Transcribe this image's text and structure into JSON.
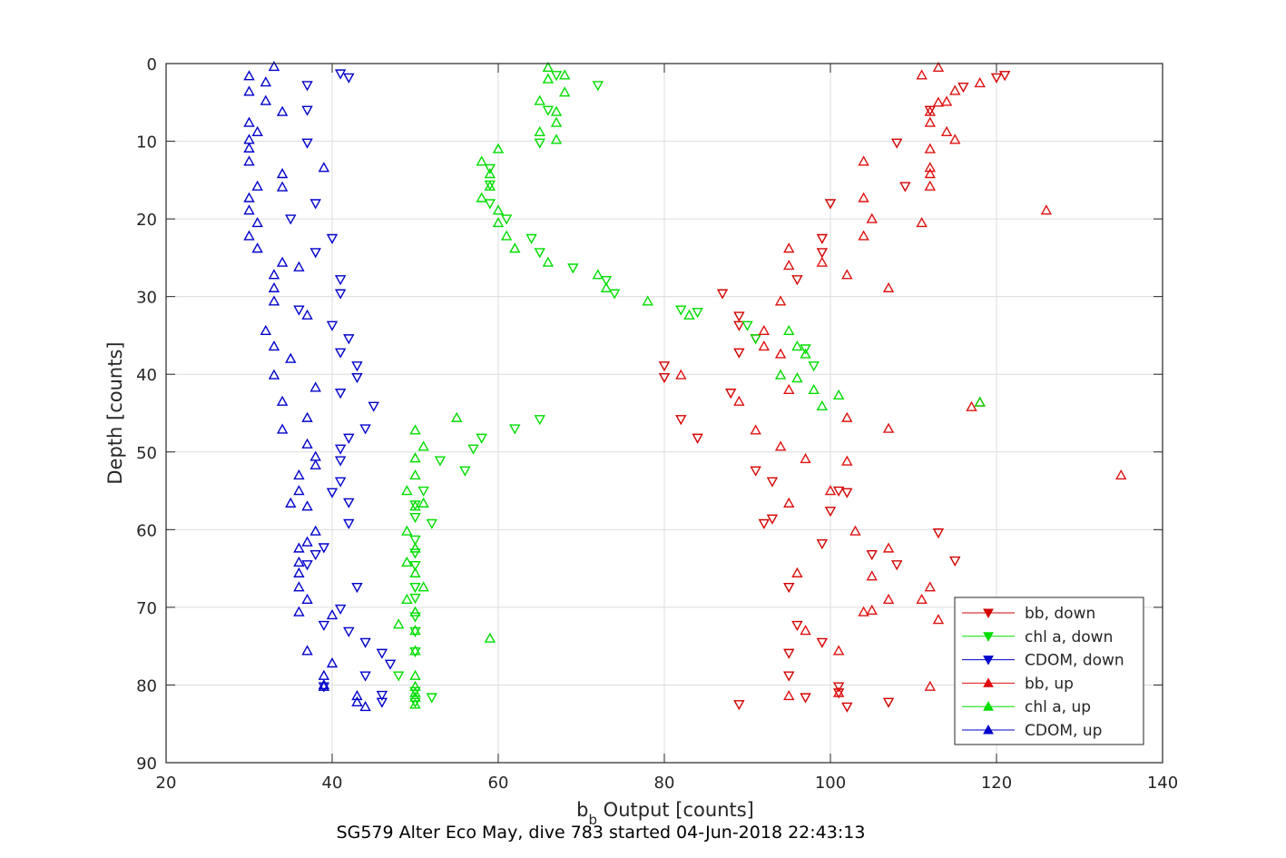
{
  "chart_data": {
    "type": "scatter",
    "xlabel_main": "b",
    "xlabel_sub": "b",
    "xlabel_rest": " Output [counts]",
    "ylabel": "Depth [counts]",
    "caption": "SG579 Alter Eco May, dive 783 started 04-Jun-2018 22:43:13",
    "xlim": [
      20,
      140
    ],
    "ylim": [
      0,
      90
    ],
    "y_reversed": true,
    "grid": true,
    "legend_position": "bottom-right",
    "x_ticks": [
      20,
      40,
      60,
      80,
      100,
      120,
      140
    ],
    "y_ticks": [
      0,
      10,
      20,
      30,
      40,
      50,
      60,
      70,
      80,
      90
    ],
    "series": [
      {
        "name": "bb, down",
        "color": "#d40000",
        "marker": "triangle-down",
        "points": [
          [
            121,
            1.5
          ],
          [
            120,
            1.8
          ],
          [
            116,
            3
          ],
          [
            112,
            6
          ],
          [
            108,
            10.2
          ],
          [
            109,
            15.8
          ],
          [
            100,
            18
          ],
          [
            99,
            22.5
          ],
          [
            99,
            24.3
          ],
          [
            96,
            27.8
          ],
          [
            87,
            29.6
          ],
          [
            89,
            32.5
          ],
          [
            89,
            33.7
          ],
          [
            91,
            35.4
          ],
          [
            89,
            37.2
          ],
          [
            80,
            38.9
          ],
          [
            80,
            40.4
          ],
          [
            88,
            42.4
          ],
          [
            82,
            45.8
          ],
          [
            84,
            48.2
          ],
          [
            91,
            52.4
          ],
          [
            93,
            53.8
          ],
          [
            101,
            55
          ],
          [
            102,
            55.2
          ],
          [
            100,
            57.6
          ],
          [
            92,
            59.2
          ],
          [
            93,
            58.6
          ],
          [
            99,
            61.8
          ],
          [
            113,
            60.4
          ],
          [
            108,
            64.5
          ],
          [
            115,
            64
          ],
          [
            105,
            63.2
          ],
          [
            95,
            67.4
          ],
          [
            96,
            72.3
          ],
          [
            99,
            74.5
          ],
          [
            95,
            75.9
          ],
          [
            95,
            78.8
          ],
          [
            101,
            80.2
          ],
          [
            101,
            81
          ],
          [
            97,
            81.6
          ],
          [
            107,
            82.2
          ],
          [
            102,
            82.8
          ],
          [
            89,
            82.5
          ]
        ]
      },
      {
        "name": "chl a, down",
        "color": "#00dd00",
        "marker": "triangle-down",
        "points": [
          [
            67,
            1.5
          ],
          [
            72,
            2.8
          ],
          [
            66,
            6
          ],
          [
            65,
            10.2
          ],
          [
            59,
            13.5
          ],
          [
            59,
            15.6
          ],
          [
            59,
            18
          ],
          [
            61,
            20
          ],
          [
            64,
            22.5
          ],
          [
            65,
            24.3
          ],
          [
            69,
            26.3
          ],
          [
            73,
            27.9
          ],
          [
            74,
            29.6
          ],
          [
            82,
            31.7
          ],
          [
            84,
            32
          ],
          [
            90,
            33.7
          ],
          [
            91,
            35.4
          ],
          [
            97,
            36.7
          ],
          [
            98,
            38.9
          ],
          [
            62,
            47
          ],
          [
            65,
            45.8
          ],
          [
            58,
            48.2
          ],
          [
            57,
            49.6
          ],
          [
            56,
            52.4
          ],
          [
            53,
            51.1
          ],
          [
            51,
            55
          ],
          [
            50,
            56.8
          ],
          [
            50,
            58.4
          ],
          [
            52,
            59.2
          ],
          [
            50,
            61.3
          ],
          [
            50,
            63
          ],
          [
            50,
            64.6
          ],
          [
            50,
            67.4
          ],
          [
            50,
            68.8
          ],
          [
            50,
            71.2
          ],
          [
            50,
            73.1
          ],
          [
            50,
            75.7
          ],
          [
            48,
            78.8
          ],
          [
            50,
            80.8
          ],
          [
            52,
            81.6
          ],
          [
            50,
            82.2
          ]
        ]
      },
      {
        "name": "CDOM, down",
        "color": "#0000cc",
        "marker": "triangle-down",
        "points": [
          [
            42,
            1.8
          ],
          [
            41,
            1.3
          ],
          [
            37,
            2.8
          ],
          [
            37,
            6
          ],
          [
            37,
            10.2
          ],
          [
            38,
            18
          ],
          [
            35,
            20
          ],
          [
            40,
            22.5
          ],
          [
            38,
            24.3
          ],
          [
            41,
            27.8
          ],
          [
            41,
            29.6
          ],
          [
            36,
            31.7
          ],
          [
            40,
            33.7
          ],
          [
            42,
            35.4
          ],
          [
            41,
            37.2
          ],
          [
            43,
            38.9
          ],
          [
            43,
            40.4
          ],
          [
            41,
            42.4
          ],
          [
            45,
            44.1
          ],
          [
            44,
            47
          ],
          [
            42,
            48.2
          ],
          [
            41,
            49.6
          ],
          [
            41,
            51.1
          ],
          [
            41,
            53.8
          ],
          [
            40,
            55.2
          ],
          [
            42,
            56.5
          ],
          [
            42,
            59.2
          ],
          [
            39,
            62.3
          ],
          [
            38,
            63.2
          ],
          [
            37,
            64.5
          ],
          [
            43,
            67.4
          ],
          [
            41,
            70.2
          ],
          [
            39,
            72.3
          ],
          [
            42,
            73.1
          ],
          [
            44,
            74.5
          ],
          [
            46,
            75.9
          ],
          [
            47,
            77.3
          ],
          [
            44,
            78.8
          ],
          [
            39,
            80.2
          ],
          [
            46,
            81.3
          ],
          [
            46,
            82.2
          ]
        ]
      },
      {
        "name": "bb, up",
        "color": "#e01010",
        "marker": "triangle-up",
        "points": [
          [
            113,
            0.5
          ],
          [
            111,
            1.5
          ],
          [
            118,
            2.5
          ],
          [
            115,
            3.5
          ],
          [
            114,
            4.9
          ],
          [
            113,
            5
          ],
          [
            112,
            6.2
          ],
          [
            112,
            7.6
          ],
          [
            114,
            8.8
          ],
          [
            115,
            9.8
          ],
          [
            112,
            11
          ],
          [
            104,
            12.6
          ],
          [
            112,
            13.4
          ],
          [
            112,
            14.2
          ],
          [
            112,
            15.8
          ],
          [
            104,
            17.3
          ],
          [
            126,
            18.9
          ],
          [
            105,
            20
          ],
          [
            111,
            20.5
          ],
          [
            104,
            22.2
          ],
          [
            95,
            23.8
          ],
          [
            95,
            26
          ],
          [
            99,
            25.6
          ],
          [
            102,
            27.2
          ],
          [
            107,
            28.9
          ],
          [
            94,
            30.6
          ],
          [
            92,
            34.4
          ],
          [
            92,
            36.4
          ],
          [
            94,
            37.4
          ],
          [
            82,
            40.1
          ],
          [
            95,
            42
          ],
          [
            89,
            43.5
          ],
          [
            118,
            43.6
          ],
          [
            117,
            44.2
          ],
          [
            102,
            45.6
          ],
          [
            107,
            47
          ],
          [
            91,
            47.2
          ],
          [
            94,
            49.3
          ],
          [
            97,
            50.9
          ],
          [
            102,
            51.2
          ],
          [
            135,
            53
          ],
          [
            100,
            55
          ],
          [
            95,
            56.6
          ],
          [
            103,
            60.2
          ],
          [
            107,
            62.4
          ],
          [
            96,
            65.6
          ],
          [
            105,
            66
          ],
          [
            107,
            69
          ],
          [
            111,
            69
          ],
          [
            112,
            67.4
          ],
          [
            105,
            70.4
          ],
          [
            104,
            70.6
          ],
          [
            113,
            71.6
          ],
          [
            97,
            73
          ],
          [
            101,
            75.6
          ],
          [
            112,
            80.2
          ],
          [
            101,
            81
          ],
          [
            95,
            81.4
          ]
        ]
      },
      {
        "name": "chl a, up",
        "color": "#00dd00",
        "marker": "triangle-up",
        "points": [
          [
            66,
            0.5
          ],
          [
            68,
            1.5
          ],
          [
            66,
            2
          ],
          [
            68,
            3.7
          ],
          [
            65,
            4.8
          ],
          [
            67,
            6.2
          ],
          [
            67,
            7.6
          ],
          [
            65,
            8.8
          ],
          [
            67,
            9.8
          ],
          [
            60,
            11
          ],
          [
            58,
            12.6
          ],
          [
            59,
            14.2
          ],
          [
            59,
            15.8
          ],
          [
            58,
            17.3
          ],
          [
            60,
            18.9
          ],
          [
            60,
            20.5
          ],
          [
            61,
            22.2
          ],
          [
            62,
            23.8
          ],
          [
            66,
            25.6
          ],
          [
            72,
            27.2
          ],
          [
            73,
            28.9
          ],
          [
            78,
            30.6
          ],
          [
            83,
            32.4
          ],
          [
            95,
            34.4
          ],
          [
            96,
            36.4
          ],
          [
            97,
            37.4
          ],
          [
            94,
            40.1
          ],
          [
            96,
            40.5
          ],
          [
            98,
            42
          ],
          [
            101,
            42.7
          ],
          [
            99,
            44.1
          ],
          [
            118,
            43.6
          ],
          [
            55,
            45.6
          ],
          [
            50,
            47.2
          ],
          [
            51,
            49.3
          ],
          [
            50,
            50.8
          ],
          [
            50,
            53
          ],
          [
            49,
            55
          ],
          [
            51,
            56.6
          ],
          [
            50,
            57
          ],
          [
            49,
            60.2
          ],
          [
            50,
            62.4
          ],
          [
            49,
            64.2
          ],
          [
            50,
            65.6
          ],
          [
            51,
            67.4
          ],
          [
            49,
            69
          ],
          [
            50,
            70.6
          ],
          [
            48,
            72.2
          ],
          [
            50,
            73
          ],
          [
            59,
            74
          ],
          [
            50,
            75.6
          ],
          [
            50,
            78.8
          ],
          [
            50,
            80.2
          ],
          [
            50,
            81
          ],
          [
            50,
            81.6
          ],
          [
            50,
            82.5
          ]
        ]
      },
      {
        "name": "CDOM, up",
        "color": "#0000cc",
        "marker": "triangle-up",
        "points": [
          [
            33,
            0.4
          ],
          [
            30,
            1.6
          ],
          [
            32,
            2.4
          ],
          [
            30,
            3.6
          ],
          [
            32,
            4.8
          ],
          [
            34,
            6.2
          ],
          [
            30,
            7.6
          ],
          [
            31,
            8.8
          ],
          [
            30,
            9.8
          ],
          [
            30,
            10.9
          ],
          [
            30,
            12.6
          ],
          [
            39,
            13.4
          ],
          [
            34,
            14.2
          ],
          [
            31,
            15.8
          ],
          [
            34,
            15.9
          ],
          [
            30,
            17.3
          ],
          [
            30,
            18.9
          ],
          [
            31,
            20.5
          ],
          [
            30,
            22.2
          ],
          [
            31,
            23.8
          ],
          [
            34,
            25.6
          ],
          [
            36,
            26.2
          ],
          [
            33,
            27.2
          ],
          [
            33,
            28.9
          ],
          [
            33,
            30.6
          ],
          [
            37,
            32.4
          ],
          [
            32,
            34.4
          ],
          [
            33,
            36.4
          ],
          [
            35,
            38
          ],
          [
            33,
            40.1
          ],
          [
            38,
            41.7
          ],
          [
            34,
            43.5
          ],
          [
            37,
            45.6
          ],
          [
            34,
            47.1
          ],
          [
            37,
            49
          ],
          [
            38,
            50.6
          ],
          [
            38,
            51.7
          ],
          [
            36,
            53
          ],
          [
            36,
            55
          ],
          [
            35,
            56.6
          ],
          [
            37,
            57
          ],
          [
            38,
            60.2
          ],
          [
            37,
            61.6
          ],
          [
            36,
            62.4
          ],
          [
            36,
            64.2
          ],
          [
            36,
            65.6
          ],
          [
            36,
            67.4
          ],
          [
            37,
            69
          ],
          [
            36,
            70.6
          ],
          [
            40,
            71
          ],
          [
            37,
            75.6
          ],
          [
            40,
            77.2
          ],
          [
            39,
            78.8
          ],
          [
            39,
            80.2
          ],
          [
            39,
            80
          ],
          [
            43,
            81.4
          ],
          [
            43,
            82.2
          ],
          [
            44,
            82.8
          ]
        ]
      }
    ]
  }
}
